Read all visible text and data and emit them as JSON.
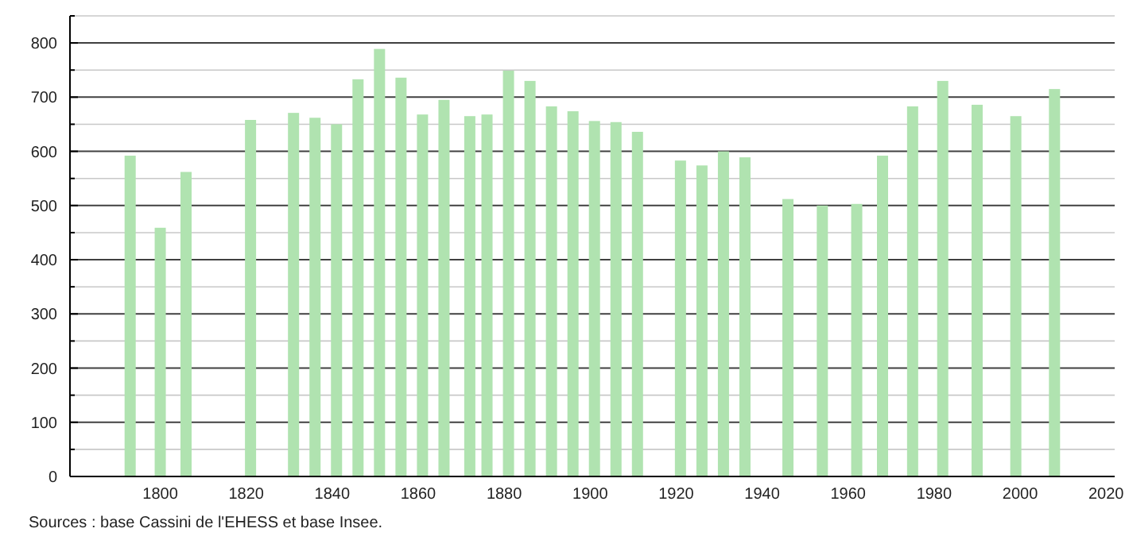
{
  "chart_data": {
    "type": "bar",
    "x": [
      1793,
      1800,
      1806,
      1821,
      1831,
      1836,
      1841,
      1846,
      1851,
      1856,
      1861,
      1866,
      1872,
      1876,
      1881,
      1886,
      1891,
      1896,
      1901,
      1906,
      1911,
      1921,
      1926,
      1931,
      1936,
      1946,
      1954,
      1962,
      1968,
      1975,
      1982,
      1990,
      1999,
      2008
    ],
    "values": [
      592,
      459,
      562,
      658,
      671,
      662,
      650,
      733,
      789,
      736,
      668,
      695,
      665,
      668,
      749,
      730,
      683,
      674,
      656,
      654,
      636,
      583,
      574,
      600,
      589,
      512,
      500,
      503,
      592,
      683,
      730,
      686,
      665,
      715
    ],
    "color": "#b0e3b0",
    "xlim": [
      1779,
      2022
    ],
    "xticks": [
      1800,
      1820,
      1840,
      1860,
      1880,
      1900,
      1920,
      1940,
      1960,
      1980,
      2000,
      2020
    ],
    "ylim": [
      0,
      850
    ],
    "yticks": [
      0,
      {
        "value": 50,
        "label": null
      },
      100,
      {
        "value": 150,
        "label": null
      },
      200,
      {
        "value": 250,
        "label": null
      },
      300,
      {
        "value": 350,
        "label": null
      },
      400,
      {
        "value": 450,
        "label": null
      },
      500,
      {
        "value": 550,
        "label": null
      },
      600,
      {
        "value": 650,
        "label": null
      },
      700,
      {
        "value": 750,
        "label": null
      },
      800,
      {
        "value": 850,
        "label": null
      }
    ],
    "grid": true,
    "annotations": [
      "Sources : base Cassini de l'EHESS et base Insee."
    ]
  }
}
